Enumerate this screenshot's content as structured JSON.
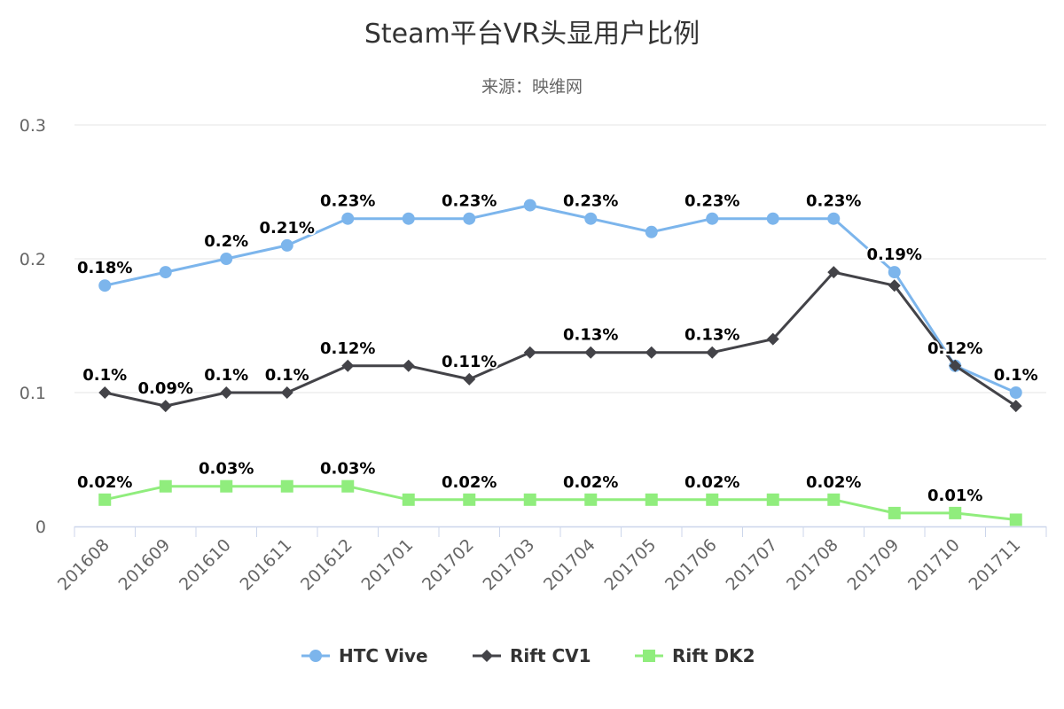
{
  "chart_data": {
    "type": "line",
    "title": "Steam平台VR头显用户比例",
    "subtitle": "来源：映维网",
    "xlabel": "",
    "ylabel": "",
    "ylim": [
      0,
      0.3
    ],
    "yticks": [
      "0",
      "0.1",
      "0.2",
      "0.3"
    ],
    "ytick_values": [
      0,
      0.1,
      0.2,
      0.3
    ],
    "grid": true,
    "legend_position": "bottom-center",
    "categories": [
      "201608",
      "201609",
      "201610",
      "201611",
      "201612",
      "201701",
      "201702",
      "201703",
      "201704",
      "201705",
      "201706",
      "201707",
      "201708",
      "201709",
      "201710",
      "201711"
    ],
    "series": [
      {
        "name": "HTC Vive",
        "color": "#7cb5ec",
        "marker": "circle",
        "values": [
          0.18,
          0.19,
          0.2,
          0.21,
          0.23,
          0.23,
          0.23,
          0.24,
          0.23,
          0.22,
          0.23,
          0.23,
          0.23,
          0.19,
          0.12,
          0.1
        ],
        "labels": [
          "0.18%",
          null,
          "0.2%",
          "0.21%",
          "0.23%",
          null,
          "0.23%",
          null,
          "0.23%",
          null,
          "0.23%",
          null,
          "0.23%",
          "0.19%",
          "0.12%",
          "0.1%"
        ]
      },
      {
        "name": "Rift CV1",
        "color": "#434348",
        "marker": "diamond",
        "values": [
          0.1,
          0.09,
          0.1,
          0.1,
          0.12,
          0.12,
          0.11,
          0.13,
          0.13,
          0.13,
          0.13,
          0.14,
          0.19,
          0.18,
          0.12,
          0.09
        ],
        "labels": [
          "0.1%",
          "0.09%",
          "0.1%",
          "0.1%",
          "0.12%",
          null,
          "0.11%",
          null,
          "0.13%",
          null,
          "0.13%",
          null,
          null,
          null,
          null,
          null
        ]
      },
      {
        "name": "Rift DK2",
        "color": "#90ed7d",
        "marker": "square",
        "values": [
          0.02,
          0.03,
          0.03,
          0.03,
          0.03,
          0.02,
          0.02,
          0.02,
          0.02,
          0.02,
          0.02,
          0.02,
          0.02,
          0.01,
          0.01,
          0.005
        ],
        "labels": [
          "0.02%",
          null,
          "0.03%",
          null,
          "0.03%",
          null,
          "0.02%",
          null,
          "0.02%",
          null,
          "0.02%",
          null,
          "0.02%",
          null,
          "0.01%",
          null
        ]
      }
    ]
  }
}
